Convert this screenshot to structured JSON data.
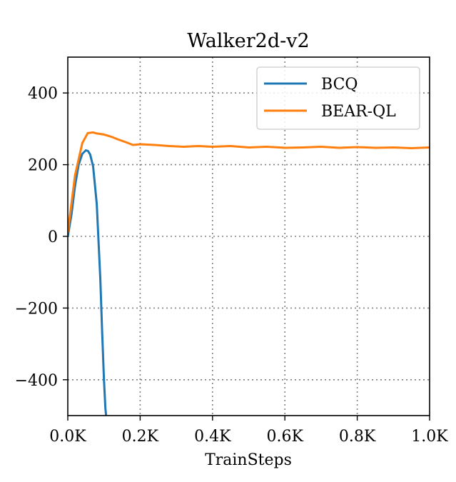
{
  "chart_data": {
    "type": "line",
    "title": "Walker2d-v2",
    "xlabel": "TrainSteps",
    "ylabel": "",
    "xlim": [
      0,
      1000
    ],
    "ylim": [
      -500,
      500
    ],
    "xticks": [
      0,
      200,
      400,
      600,
      800,
      1000
    ],
    "xtick_labels": [
      "0.0K",
      "0.2K",
      "0.4K",
      "0.6K",
      "0.8K",
      "1.0K"
    ],
    "yticks": [
      -400,
      -200,
      0,
      200,
      400
    ],
    "ytick_labels": [
      "−400",
      "−200",
      "0",
      "200",
      "400"
    ],
    "grid": true,
    "legend_position": "top-right",
    "series": [
      {
        "name": "BCQ",
        "color": "#1f77b4",
        "x": [
          0,
          10,
          20,
          30,
          40,
          50,
          56,
          62,
          70,
          80,
          90,
          95,
          100,
          104,
          106
        ],
        "y": [
          0,
          60,
          140,
          200,
          230,
          240,
          238,
          228,
          195,
          90,
          -120,
          -270,
          -400,
          -480,
          -500
        ]
      },
      {
        "name": "BEAR-QL",
        "color": "#ff7f0e",
        "x": [
          0,
          20,
          40,
          55,
          70,
          80,
          100,
          120,
          140,
          160,
          180,
          200,
          240,
          280,
          320,
          360,
          400,
          450,
          500,
          550,
          600,
          650,
          700,
          750,
          800,
          850,
          900,
          950,
          1000
        ],
        "y": [
          10,
          170,
          260,
          288,
          290,
          287,
          284,
          278,
          270,
          263,
          255,
          257,
          255,
          252,
          250,
          252,
          250,
          252,
          248,
          250,
          247,
          248,
          250,
          247,
          249,
          247,
          248,
          246,
          248
        ]
      }
    ]
  }
}
